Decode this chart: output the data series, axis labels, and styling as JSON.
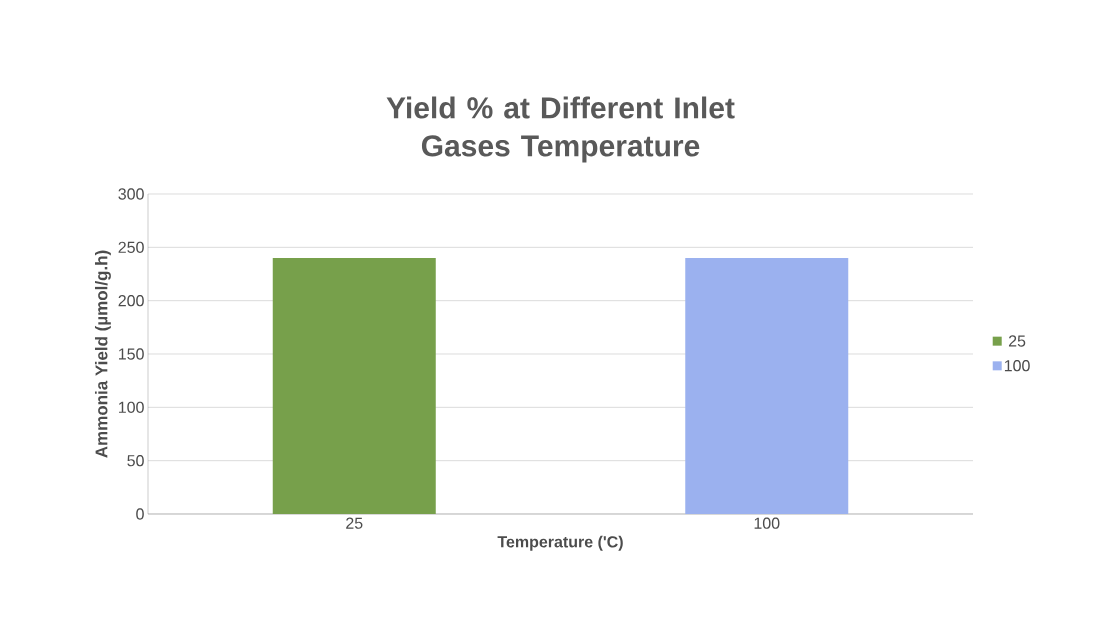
{
  "chart_data": {
    "type": "bar",
    "title": "Yield % at Different Inlet Gases Temperature",
    "xlabel": "Temperature ('C)",
    "ylabel": "Ammonia Yield (µmol/g.h)",
    "categories": [
      "25",
      "100"
    ],
    "series": [
      {
        "name": "25",
        "color": "#77a04b",
        "values": [
          240,
          null
        ]
      },
      {
        "name": "100",
        "color": "#9bb1ef",
        "values": [
          null,
          240
        ]
      }
    ],
    "ylim": [
      0,
      300
    ],
    "yticks": [
      0,
      50,
      100,
      150,
      200,
      250,
      300
    ],
    "grid": "y",
    "legend": "right"
  }
}
